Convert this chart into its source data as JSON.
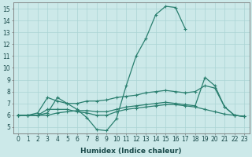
{
  "lines": [
    {
      "x": [
        0,
        1,
        2,
        3,
        4,
        5,
        6,
        7,
        8,
        9,
        10,
        11,
        12,
        13,
        14,
        15,
        16,
        17
      ],
      "y": [
        6,
        6,
        6,
        6.2,
        7.5,
        7.0,
        6.5,
        5.8,
        4.8,
        4.7,
        5.7,
        8.5,
        11.0,
        12.5,
        14.5,
        15.2,
        15.1,
        13.3
      ]
    },
    {
      "x": [
        0,
        1,
        2,
        3,
        4,
        5,
        6,
        7,
        8,
        9,
        10,
        11,
        12,
        13,
        14,
        15,
        16,
        17,
        18,
        19,
        20,
        21,
        22,
        23
      ],
      "y": [
        6,
        6,
        6.2,
        7.5,
        7.2,
        7.0,
        7.0,
        7.2,
        7.2,
        7.3,
        7.5,
        7.6,
        7.7,
        7.9,
        8.0,
        8.1,
        8.0,
        7.9,
        8.0,
        8.5,
        8.3,
        6.7,
        6.0,
        5.9
      ]
    },
    {
      "x": [
        0,
        1,
        2,
        3,
        4,
        5,
        6,
        7,
        8,
        9,
        10,
        11,
        12,
        13,
        14,
        15,
        16,
        17,
        18,
        19,
        20,
        21,
        22,
        23
      ],
      "y": [
        6,
        6,
        6,
        6.5,
        6.5,
        6.5,
        6.3,
        6.2,
        6.0,
        6.0,
        6.3,
        6.5,
        6.6,
        6.7,
        6.8,
        6.9,
        6.9,
        6.8,
        6.7,
        6.5,
        6.3,
        6.1,
        6.0,
        5.9
      ]
    },
    {
      "x": [
        0,
        1,
        2,
        3,
        4,
        5,
        6,
        7,
        8,
        9,
        10,
        11,
        12,
        13,
        14,
        15,
        16,
        17,
        18,
        19,
        20,
        21,
        22,
        23
      ],
      "y": [
        6,
        6,
        6,
        6.0,
        6.2,
        6.3,
        6.4,
        6.4,
        6.3,
        6.3,
        6.5,
        6.7,
        6.8,
        6.9,
        7.0,
        7.1,
        7.0,
        6.9,
        6.8,
        9.2,
        8.5,
        6.7,
        6.0,
        5.9
      ]
    }
  ],
  "line_color": "#2a7f6f",
  "marker": "+",
  "markersize": 3.5,
  "markeredgewidth": 0.8,
  "linewidth": 0.9,
  "xlim": [
    -0.5,
    23.5
  ],
  "ylim": [
    4.5,
    15.5
  ],
  "xticks": [
    0,
    1,
    2,
    3,
    4,
    5,
    6,
    7,
    8,
    9,
    10,
    11,
    12,
    13,
    14,
    15,
    16,
    17,
    18,
    19,
    20,
    21,
    22,
    23
  ],
  "yticks": [
    5,
    6,
    7,
    8,
    9,
    10,
    11,
    12,
    13,
    14,
    15
  ],
  "xlabel": "Humidex (Indice chaleur)",
  "background_color": "#cce9e9",
  "grid_color": "#aad4d4",
  "tick_fontsize": 5.5,
  "xlabel_fontsize": 6.5,
  "label_color": "#1a4a4a"
}
